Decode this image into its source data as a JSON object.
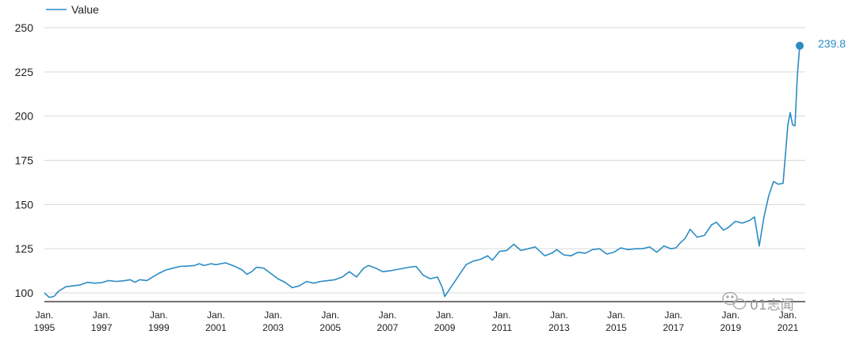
{
  "chart_data": {
    "type": "line",
    "legend": {
      "label": "Value",
      "position": "top-left"
    },
    "ylim": [
      95,
      250
    ],
    "y_ticks": [
      100,
      125,
      150,
      175,
      200,
      225,
      250
    ],
    "x_range": [
      "1995-01",
      "2021-06"
    ],
    "x_ticks": [
      {
        "year": 1995,
        "line1": "Jan.",
        "line2": "1995"
      },
      {
        "year": 1997,
        "line1": "Jan.",
        "line2": "1997"
      },
      {
        "year": 1999,
        "line1": "Jan.",
        "line2": "1999"
      },
      {
        "year": 2001,
        "line1": "Jan.",
        "line2": "2001"
      },
      {
        "year": 2003,
        "line1": "Jan.",
        "line2": "2003"
      },
      {
        "year": 2005,
        "line1": "Jan.",
        "line2": "2005"
      },
      {
        "year": 2007,
        "line1": "Jan.",
        "line2": "2007"
      },
      {
        "year": 2009,
        "line1": "Jan.",
        "line2": "2009"
      },
      {
        "year": 2011,
        "line1": "Jan.",
        "line2": "2011"
      },
      {
        "year": 2013,
        "line1": "Jan.",
        "line2": "2013"
      },
      {
        "year": 2015,
        "line1": "Jan.",
        "line2": "2015"
      },
      {
        "year": 2017,
        "line1": "Jan.",
        "line2": "2017"
      },
      {
        "year": 2019,
        "line1": "Jan.",
        "line2": "2019"
      },
      {
        "year": 2021,
        "line1": "Jan.",
        "line2": "2021"
      }
    ],
    "grid": true,
    "series": [
      {
        "name": "Value",
        "color": "#2b8cc4",
        "points": [
          [
            "1995-01",
            100
          ],
          [
            "1995-03",
            97.5
          ],
          [
            "1995-05",
            98
          ],
          [
            "1995-07",
            101
          ],
          [
            "1995-10",
            103.5
          ],
          [
            "1996-01",
            104
          ],
          [
            "1996-04",
            104.5
          ],
          [
            "1996-07",
            106
          ],
          [
            "1996-10",
            105.5
          ],
          [
            "1997-01",
            105.8
          ],
          [
            "1997-04",
            107
          ],
          [
            "1997-07",
            106.5
          ],
          [
            "1997-10",
            106.8
          ],
          [
            "1998-01",
            107.5
          ],
          [
            "1998-03",
            106
          ],
          [
            "1998-05",
            107.5
          ],
          [
            "1998-08",
            107
          ],
          [
            "1998-11",
            109.5
          ],
          [
            "1999-01",
            111
          ],
          [
            "1999-04",
            113
          ],
          [
            "1999-07",
            114
          ],
          [
            "1999-10",
            115
          ],
          [
            "2000-01",
            115.2
          ],
          [
            "2000-04",
            115.5
          ],
          [
            "2000-06",
            116.5
          ],
          [
            "2000-08",
            115.5
          ],
          [
            "2000-11",
            116.5
          ],
          [
            "2001-01",
            116
          ],
          [
            "2001-05",
            117
          ],
          [
            "2001-09",
            115
          ],
          [
            "2001-12",
            113
          ],
          [
            "2002-02",
            110.5
          ],
          [
            "2002-04",
            112
          ],
          [
            "2002-06",
            114.5
          ],
          [
            "2002-09",
            114
          ],
          [
            "2002-12",
            111
          ],
          [
            "2003-03",
            108
          ],
          [
            "2003-06",
            106
          ],
          [
            "2003-09",
            103
          ],
          [
            "2003-12",
            104
          ],
          [
            "2004-03",
            106.5
          ],
          [
            "2004-06",
            105.5
          ],
          [
            "2004-09",
            106.5
          ],
          [
            "2004-12",
            107
          ],
          [
            "2005-03",
            107.5
          ],
          [
            "2005-06",
            109
          ],
          [
            "2005-09",
            112
          ],
          [
            "2005-12",
            109
          ],
          [
            "2006-03",
            114
          ],
          [
            "2006-05",
            115.5
          ],
          [
            "2006-08",
            114
          ],
          [
            "2006-11",
            112
          ],
          [
            "2007-02",
            112.5
          ],
          [
            "2007-06",
            113.5
          ],
          [
            "2007-10",
            114.5
          ],
          [
            "2008-01",
            115
          ],
          [
            "2008-04",
            110
          ],
          [
            "2008-07",
            108
          ],
          [
            "2008-10",
            109
          ],
          [
            "2008-12",
            103
          ],
          [
            "2009-01",
            98
          ],
          [
            "2009-04",
            104
          ],
          [
            "2009-07",
            110
          ],
          [
            "2009-10",
            116
          ],
          [
            "2010-01",
            118
          ],
          [
            "2010-04",
            119
          ],
          [
            "2010-07",
            121
          ],
          [
            "2010-09",
            118.5
          ],
          [
            "2010-12",
            123.5
          ],
          [
            "2011-03",
            124
          ],
          [
            "2011-06",
            127.5
          ],
          [
            "2011-09",
            124
          ],
          [
            "2011-12",
            125
          ],
          [
            "2012-03",
            126
          ],
          [
            "2012-07",
            121
          ],
          [
            "2012-10",
            122.5
          ],
          [
            "2012-12",
            124.5
          ],
          [
            "2013-03",
            121.5
          ],
          [
            "2013-06",
            121
          ],
          [
            "2013-09",
            123
          ],
          [
            "2013-12",
            122.5
          ],
          [
            "2014-03",
            124.5
          ],
          [
            "2014-06",
            125
          ],
          [
            "2014-09",
            122
          ],
          [
            "2014-12",
            123
          ],
          [
            "2015-03",
            125.5
          ],
          [
            "2015-06",
            124.5
          ],
          [
            "2015-09",
            125
          ],
          [
            "2015-12",
            125
          ],
          [
            "2016-03",
            126
          ],
          [
            "2016-06",
            123
          ],
          [
            "2016-09",
            126.5
          ],
          [
            "2016-12",
            125
          ],
          [
            "2017-02",
            125.5
          ],
          [
            "2017-04",
            128.5
          ],
          [
            "2017-06",
            131
          ],
          [
            "2017-08",
            136
          ],
          [
            "2017-11",
            131.5
          ],
          [
            "2018-02",
            132.5
          ],
          [
            "2018-05",
            138.5
          ],
          [
            "2018-07",
            140
          ],
          [
            "2018-10",
            135.5
          ],
          [
            "2018-12",
            137
          ],
          [
            "2019-03",
            140.5
          ],
          [
            "2019-06",
            139.5
          ],
          [
            "2019-09",
            141
          ],
          [
            "2019-11",
            143
          ],
          [
            "2020-01",
            126.5
          ],
          [
            "2020-03",
            143
          ],
          [
            "2020-05",
            155
          ],
          [
            "2020-07",
            163
          ],
          [
            "2020-09",
            161.5
          ],
          [
            "2020-11",
            162
          ],
          [
            "2021-01",
            195
          ],
          [
            "2021-02",
            202
          ],
          [
            "2021-03",
            195
          ],
          [
            "2021-04",
            194.5
          ],
          [
            "2021-05",
            223
          ],
          [
            "2021-06",
            239.8
          ]
        ]
      }
    ],
    "end_label": "239.8",
    "watermark": "01志闻"
  }
}
